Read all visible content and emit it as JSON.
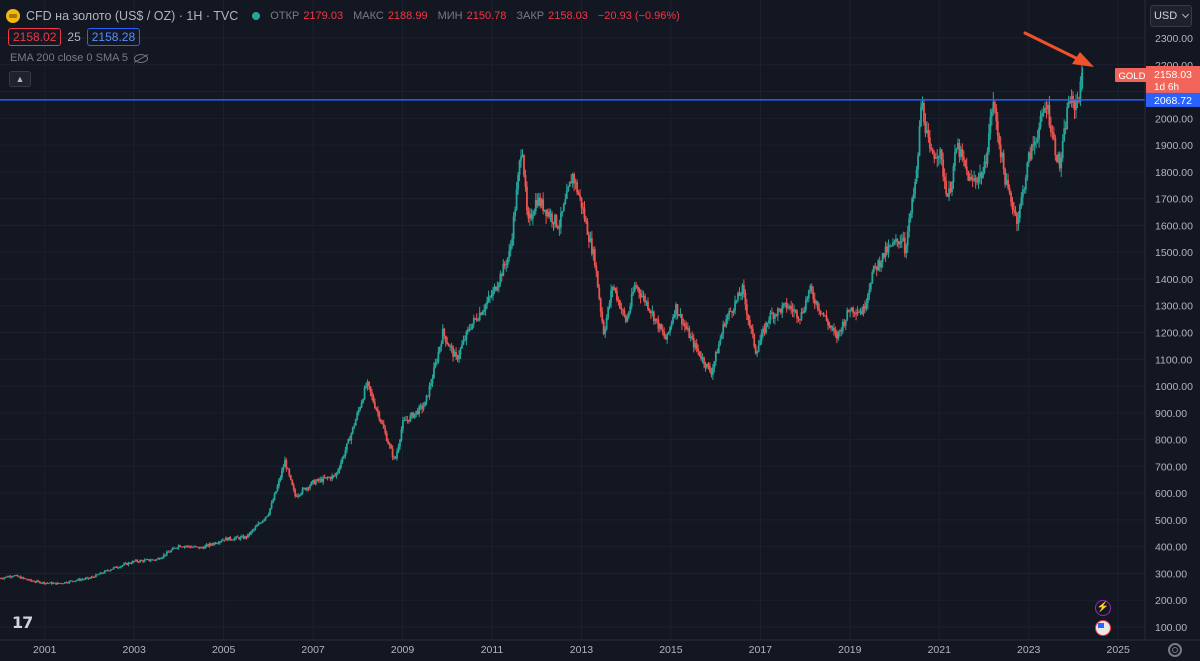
{
  "header": {
    "symbol_title": "CFD на золото (US$ / OZ) · 1H · TVC",
    "ohlc": [
      {
        "label": "ОТКР",
        "value": "2179.03"
      },
      {
        "label": "МАКС",
        "value": "2188.99"
      },
      {
        "label": "МИН",
        "value": "2150.78"
      },
      {
        "label": "ЗАКР",
        "value": "2158.03"
      }
    ],
    "change": "−20.93 (−0.96%)",
    "bid": "2158.02",
    "spread": "25",
    "ask": "2158.28",
    "indicators": "EMA 200 close 0 SMA 5",
    "collapse_icon": "chevron-up-icon",
    "currency": "USD"
  },
  "logo_text": "17",
  "colors": {
    "background": "#131722",
    "up": "#26a69a",
    "down": "#ef5350",
    "level_line": "#2962ff",
    "arrow": "#f0512b",
    "price_badge": "#f0645a"
  },
  "chart_data": {
    "type": "candlestick",
    "x_start_year": 2000,
    "x_end_year": 2025,
    "ylim": [
      100,
      2400
    ],
    "price_scale": "log",
    "x_ticks": [
      "2001",
      "2003",
      "2005",
      "2007",
      "2009",
      "2011",
      "2013",
      "2015",
      "2017",
      "2019",
      "2021",
      "2023",
      "2025"
    ],
    "y_ticks": [
      "2300.00",
      "2200.00",
      "2100.00",
      "2000.00",
      "1900.00",
      "1800.00",
      "1700.00",
      "1600.00",
      "1500.00",
      "1400.00",
      "1300.00",
      "1200.00",
      "1100.00",
      "1000.00",
      "900.00",
      "800.00",
      "700.00",
      "600.00",
      "500.00",
      "400.00",
      "300.00",
      "200.00",
      "100.00"
    ],
    "series_path": [
      [
        2000.0,
        282
      ],
      [
        2000.3,
        293
      ],
      [
        2000.7,
        272
      ],
      [
        2001.0,
        265
      ],
      [
        2001.3,
        262
      ],
      [
        2001.7,
        275
      ],
      [
        2002.0,
        282
      ],
      [
        2002.5,
        318
      ],
      [
        2003.0,
        345
      ],
      [
        2003.5,
        352
      ],
      [
        2004.0,
        405
      ],
      [
        2004.5,
        395
      ],
      [
        2005.0,
        428
      ],
      [
        2005.5,
        435
      ],
      [
        2006.0,
        525
      ],
      [
        2006.37,
        720
      ],
      [
        2006.6,
        590
      ],
      [
        2007.0,
        640
      ],
      [
        2007.5,
        665
      ],
      [
        2008.0,
        900
      ],
      [
        2008.2,
        1010
      ],
      [
        2008.5,
        880
      ],
      [
        2008.83,
        720
      ],
      [
        2009.0,
        860
      ],
      [
        2009.5,
        930
      ],
      [
        2009.9,
        1200
      ],
      [
        2010.2,
        1100
      ],
      [
        2010.5,
        1220
      ],
      [
        2011.0,
        1340
      ],
      [
        2011.4,
        1500
      ],
      [
        2011.67,
        1920
      ],
      [
        2011.8,
        1600
      ],
      [
        2012.0,
        1700
      ],
      [
        2012.5,
        1600
      ],
      [
        2012.8,
        1790
      ],
      [
        2013.0,
        1680
      ],
      [
        2013.3,
        1470
      ],
      [
        2013.5,
        1200
      ],
      [
        2013.7,
        1380
      ],
      [
        2014.0,
        1240
      ],
      [
        2014.2,
        1380
      ],
      [
        2014.5,
        1300
      ],
      [
        2014.9,
        1170
      ],
      [
        2015.1,
        1300
      ],
      [
        2015.5,
        1160
      ],
      [
        2015.9,
        1050
      ],
      [
        2016.2,
        1240
      ],
      [
        2016.6,
        1360
      ],
      [
        2016.9,
        1130
      ],
      [
        2017.2,
        1260
      ],
      [
        2017.6,
        1300
      ],
      [
        2017.9,
        1260
      ],
      [
        2018.1,
        1360
      ],
      [
        2018.6,
        1210
      ],
      [
        2018.7,
        1180
      ],
      [
        2019.0,
        1290
      ],
      [
        2019.3,
        1280
      ],
      [
        2019.5,
        1420
      ],
      [
        2019.8,
        1500
      ],
      [
        2020.2,
        1560
      ],
      [
        2020.2,
        1480
      ],
      [
        2020.5,
        1800
      ],
      [
        2020.6,
        2070
      ],
      [
        2020.8,
        1860
      ],
      [
        2021.0,
        1880
      ],
      [
        2021.2,
        1700
      ],
      [
        2021.4,
        1900
      ],
      [
        2021.7,
        1760
      ],
      [
        2022.0,
        1800
      ],
      [
        2022.2,
        2070
      ],
      [
        2022.5,
        1750
      ],
      [
        2022.75,
        1620
      ],
      [
        2023.0,
        1850
      ],
      [
        2023.3,
        2000
      ],
      [
        2023.4,
        2060
      ],
      [
        2023.6,
        1880
      ],
      [
        2023.7,
        1820
      ],
      [
        2023.9,
        2080
      ],
      [
        2024.0,
        2040
      ],
      [
        2024.15,
        2100
      ],
      [
        2024.2,
        2190
      ],
      [
        2024.22,
        2158
      ]
    ],
    "last_price": "2158.03",
    "countdown": "1d 6h",
    "symbol_badge": "GOLD",
    "level_line_value": 2068.72,
    "level_line_label": "2068.72",
    "annotation": "red-arrow-to-latest-high"
  }
}
